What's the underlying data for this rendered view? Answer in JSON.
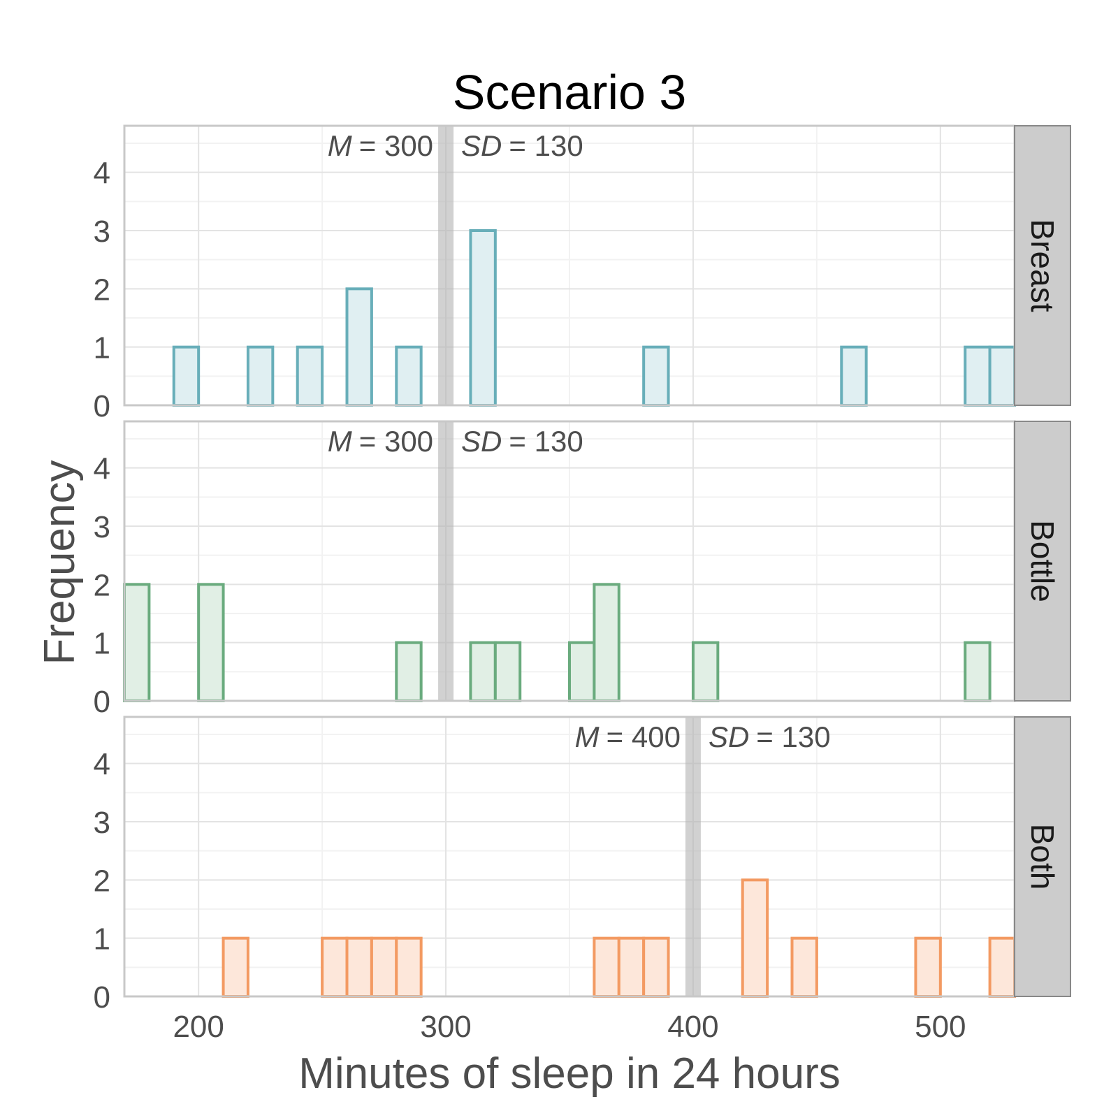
{
  "chart_data": {
    "type": "bar",
    "title": "Scenario 3",
    "xlabel": "Minutes of sleep in 24 hours",
    "ylabel": "Frequency",
    "xlim": [
      170,
      530
    ],
    "ylim": [
      0,
      4.8
    ],
    "x_ticks": [
      200,
      300,
      400,
      500
    ],
    "y_ticks": [
      0,
      1,
      2,
      3,
      4
    ],
    "bin_width": 10,
    "grid": true,
    "facets": [
      {
        "label": "Breast",
        "color": "#68aeb9",
        "fill": "#e0eff2",
        "mean_line": 300,
        "annotation": {
          "m_label": "M",
          "m_value": "= 300",
          "sd_label": "SD",
          "sd_value": "= 130"
        },
        "bins": [
          {
            "x": 190,
            "count": 1
          },
          {
            "x": 220,
            "count": 1
          },
          {
            "x": 240,
            "count": 1
          },
          {
            "x": 260,
            "count": 2
          },
          {
            "x": 280,
            "count": 1
          },
          {
            "x": 310,
            "count": 3
          },
          {
            "x": 380,
            "count": 1
          },
          {
            "x": 460,
            "count": 1
          },
          {
            "x": 510,
            "count": 1
          },
          {
            "x": 520,
            "count": 1
          }
        ]
      },
      {
        "label": "Bottle",
        "color": "#6aab7e",
        "fill": "#e1efe5",
        "mean_line": 300,
        "annotation": {
          "m_label": "M",
          "m_value": "= 300",
          "sd_label": "SD",
          "sd_value": "= 130"
        },
        "bins": [
          {
            "x": 170,
            "count": 2
          },
          {
            "x": 200,
            "count": 2
          },
          {
            "x": 280,
            "count": 1
          },
          {
            "x": 310,
            "count": 1
          },
          {
            "x": 320,
            "count": 1
          },
          {
            "x": 350,
            "count": 1
          },
          {
            "x": 360,
            "count": 2
          },
          {
            "x": 400,
            "count": 1
          },
          {
            "x": 510,
            "count": 1
          }
        ]
      },
      {
        "label": "Both",
        "color": "#f39a62",
        "fill": "#fde7da",
        "mean_line": 400,
        "annotation": {
          "m_label": "M",
          "m_value": "= 400",
          "sd_label": "SD",
          "sd_value": "= 130"
        },
        "bins": [
          {
            "x": 210,
            "count": 1
          },
          {
            "x": 250,
            "count": 1
          },
          {
            "x": 260,
            "count": 1
          },
          {
            "x": 270,
            "count": 1
          },
          {
            "x": 280,
            "count": 1
          },
          {
            "x": 360,
            "count": 1
          },
          {
            "x": 370,
            "count": 1
          },
          {
            "x": 380,
            "count": 1
          },
          {
            "x": 420,
            "count": 2
          },
          {
            "x": 440,
            "count": 1
          },
          {
            "x": 490,
            "count": 1
          },
          {
            "x": 520,
            "count": 1
          }
        ]
      }
    ]
  }
}
